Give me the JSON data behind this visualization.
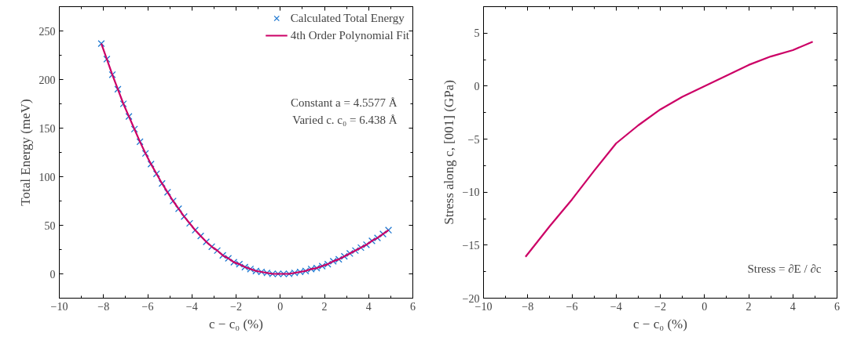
{
  "chart_data": [
    {
      "type": "scatter",
      "xlabel": "c − c₀ (%)",
      "ylabel": "Total Energy (meV)",
      "xlim": [
        -10,
        6
      ],
      "xticks": [
        -10,
        -8,
        -6,
        -4,
        -2,
        0,
        2,
        4,
        6
      ],
      "ylim": [
        -25,
        275
      ],
      "yticks": [
        0,
        50,
        100,
        150,
        200,
        250
      ],
      "legend": "top right",
      "annotations": [
        "Constant a = 4.5577 Å",
        "Varied c. c₀ = 6.438 Å"
      ],
      "x": [
        -8.1,
        -7.85,
        -7.6,
        -7.35,
        -7.1,
        -6.85,
        -6.6,
        -6.35,
        -6.1,
        -5.85,
        -5.6,
        -5.35,
        -5.1,
        -4.85,
        -4.6,
        -4.35,
        -4.1,
        -3.85,
        -3.6,
        -3.35,
        -3.1,
        -2.85,
        -2.6,
        -2.35,
        -2.1,
        -1.85,
        -1.6,
        -1.35,
        -1.1,
        -0.85,
        -0.6,
        -0.35,
        -0.1,
        0.15,
        0.4,
        0.65,
        0.9,
        1.15,
        1.4,
        1.65,
        1.9,
        2.15,
        2.4,
        2.65,
        2.9,
        3.15,
        3.4,
        3.65,
        3.9,
        4.15,
        4.4,
        4.65,
        4.9
      ],
      "series": [
        {
          "name": "Calculated Total Energy",
          "type": "scatter",
          "marker": "cross",
          "color": "#1f78d1",
          "values": [
            237,
            221,
            205,
            190,
            175,
            162,
            149,
            136,
            124,
            113,
            103,
            93,
            84,
            75,
            67,
            59,
            52,
            45,
            39,
            33,
            28,
            24,
            19,
            16,
            12,
            10,
            7,
            5,
            3,
            2,
            1,
            0,
            0,
            0,
            0,
            1,
            2,
            3,
            5,
            6,
            8,
            10,
            13,
            15,
            18,
            21,
            24,
            27,
            30,
            34,
            37,
            41,
            45
          ]
        },
        {
          "name": "4th Order Polynomial Fit",
          "type": "line",
          "line_style": "solid",
          "color": "#cc0066",
          "values": [
            237,
            221,
            205,
            190,
            175,
            162,
            149,
            136,
            124,
            113,
            103,
            93,
            84,
            75,
            67,
            59,
            52,
            45,
            39,
            33,
            28,
            24,
            19,
            16,
            12,
            10,
            7,
            5,
            3,
            2,
            1,
            0,
            0,
            0,
            0,
            1,
            2,
            3,
            5,
            6,
            8,
            10,
            13,
            15,
            18,
            21,
            24,
            27,
            30,
            34,
            37,
            41,
            45
          ]
        }
      ]
    },
    {
      "type": "line",
      "xlabel": "c − c₀ (%)",
      "ylabel": "Stress along c, [001] (GPa)",
      "xlim": [
        -10,
        6
      ],
      "xticks": [
        -10,
        -8,
        -6,
        -4,
        -2,
        0,
        2,
        4,
        6
      ],
      "ylim": [
        -20,
        7.5
      ],
      "yticks": [
        -20,
        -15,
        -10,
        -5,
        0,
        5
      ],
      "annotations": [
        "Stress = ∂E / ∂c"
      ],
      "x": [
        -8.1,
        -7,
        -6,
        -5,
        -4,
        -3,
        -2,
        -1,
        0,
        1,
        2,
        3,
        4,
        4.9
      ],
      "series": [
        {
          "color": "#cc0066",
          "line_style": "solid",
          "values": [
            -16.1,
            -13.2,
            -10.7,
            -8.0,
            -5.4,
            -3.7,
            -2.2,
            -1.0,
            0.0,
            1.0,
            2.0,
            2.8,
            3.4,
            4.2
          ]
        }
      ]
    }
  ]
}
